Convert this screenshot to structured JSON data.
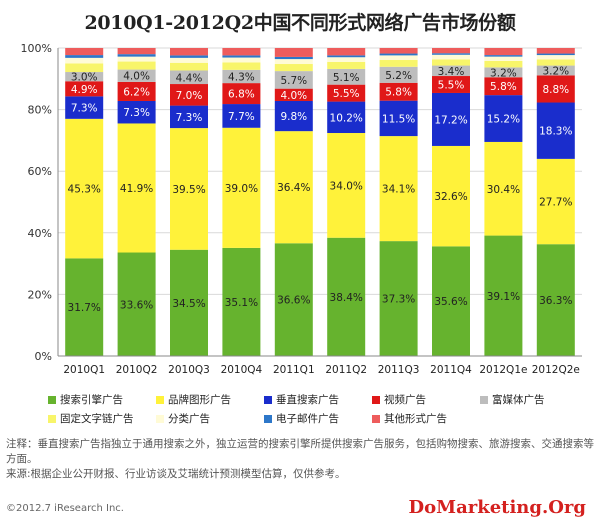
{
  "chart_data": {
    "type": "bar",
    "stacked": true,
    "title": "2010Q1-2012Q2中国不同形式网络广告市场份额",
    "categories": [
      "2010Q1",
      "2010Q2",
      "2010Q3",
      "2010Q4",
      "2011Q1",
      "2011Q2",
      "2011Q3",
      "2011Q4",
      "2012Q1e",
      "2012Q2e"
    ],
    "ylim": [
      0,
      100
    ],
    "yticks": [
      "0%",
      "20%",
      "40%",
      "60%",
      "80%",
      "100%"
    ],
    "grid": true,
    "legend_position": "bottom",
    "series": [
      {
        "name": "搜索引擎广告",
        "color": "#66b32e",
        "values": [
          31.7,
          33.6,
          34.5,
          35.1,
          36.6,
          38.4,
          37.3,
          35.6,
          39.1,
          36.3
        ],
        "labels": [
          "31.7%",
          "33.6%",
          "34.5%",
          "35.1%",
          "36.6%",
          "38.4%",
          "37.3%",
          "35.6%",
          "39.1%",
          "36.3%"
        ]
      },
      {
        "name": "品牌图形广告",
        "color": "#fff23a",
        "values": [
          45.3,
          41.9,
          39.5,
          39.0,
          36.4,
          34.0,
          34.1,
          32.6,
          30.4,
          27.7
        ],
        "labels": [
          "45.3%",
          "41.9%",
          "39.5%",
          "39.0%",
          "36.4%",
          "34.0%",
          "34.1%",
          "32.6%",
          "30.4%",
          "27.7%"
        ]
      },
      {
        "name": "垂直搜索广告",
        "color": "#1a2dcc",
        "values": [
          7.3,
          7.3,
          7.3,
          7.7,
          9.8,
          10.2,
          11.5,
          17.2,
          15.2,
          18.3
        ],
        "labels": [
          "7.3%",
          "7.3%",
          "7.3%",
          "7.7%",
          "9.8%",
          "10.2%",
          "11.5%",
          "17.2%",
          "15.2%",
          "18.3%"
        ]
      },
      {
        "name": "视频广告",
        "color": "#e01818",
        "values": [
          4.9,
          6.2,
          7.0,
          6.8,
          4.0,
          5.5,
          5.8,
          5.5,
          5.8,
          8.8
        ],
        "labels": [
          "4.9%",
          "6.2%",
          "7.0%",
          "6.8%",
          "4.0%",
          "5.5%",
          "5.8%",
          "5.5%",
          "5.8%",
          "8.8%"
        ]
      },
      {
        "name": "富媒体广告",
        "color": "#bdbdbd",
        "values": [
          3.0,
          4.0,
          4.4,
          4.3,
          5.7,
          5.1,
          5.2,
          3.4,
          3.2,
          3.2
        ],
        "labels": [
          "3.0%",
          "4.0%",
          "4.4%",
          "4.3%",
          "5.7%",
          "5.1%",
          "5.2%",
          "3.4%",
          "3.2%",
          "3.2%"
        ]
      },
      {
        "name": "固定文字链广告",
        "color": "#f8f56a",
        "values": [
          2.8,
          2.6,
          2.5,
          2.4,
          2.3,
          2.3,
          2.2,
          2.0,
          2.1,
          2.0
        ]
      },
      {
        "name": "分类广告",
        "color": "#fffbd6",
        "values": [
          1.8,
          1.6,
          1.6,
          1.6,
          1.6,
          1.5,
          1.5,
          1.5,
          1.4,
          1.4
        ]
      },
      {
        "name": "电子邮件广告",
        "color": "#2d77c9",
        "values": [
          0.9,
          0.8,
          0.8,
          0.7,
          0.7,
          0.6,
          0.6,
          0.5,
          0.5,
          0.5
        ]
      },
      {
        "name": "其他形式广告",
        "color": "#ee5c5c",
        "values": [
          2.3,
          2.0,
          2.4,
          2.4,
          2.9,
          2.4,
          1.8,
          1.7,
          2.3,
          1.8
        ]
      }
    ]
  },
  "legend": [
    {
      "label": "搜索引擎广告",
      "color": "#66b32e"
    },
    {
      "label": "品牌图形广告",
      "color": "#fff23a"
    },
    {
      "label": "垂直搜索广告",
      "color": "#1a2dcc"
    },
    {
      "label": "视频广告",
      "color": "#e01818"
    },
    {
      "label": "富媒体广告",
      "color": "#bdbdbd"
    },
    {
      "label": "固定文字链广告",
      "color": "#f8f56a"
    },
    {
      "label": "分类广告",
      "color": "#fffbd6"
    },
    {
      "label": "电子邮件广告",
      "color": "#2d77c9"
    },
    {
      "label": "其他形式广告",
      "color": "#ee5c5c"
    }
  ],
  "notes": {
    "note1": "注释：垂直搜索广告指独立于通用搜索之外，独立运营的搜索引擎所提供搜索广告服务，包括购物搜索、旅游搜索、交通搜索等方面。",
    "note2": "来源:根据企业公开财报、行业访谈及艾瑞统计预测模型估算，仅供参考。"
  },
  "copyright": "©2012.7 iResearch Inc.",
  "watermark": "DoMarketing.Org"
}
